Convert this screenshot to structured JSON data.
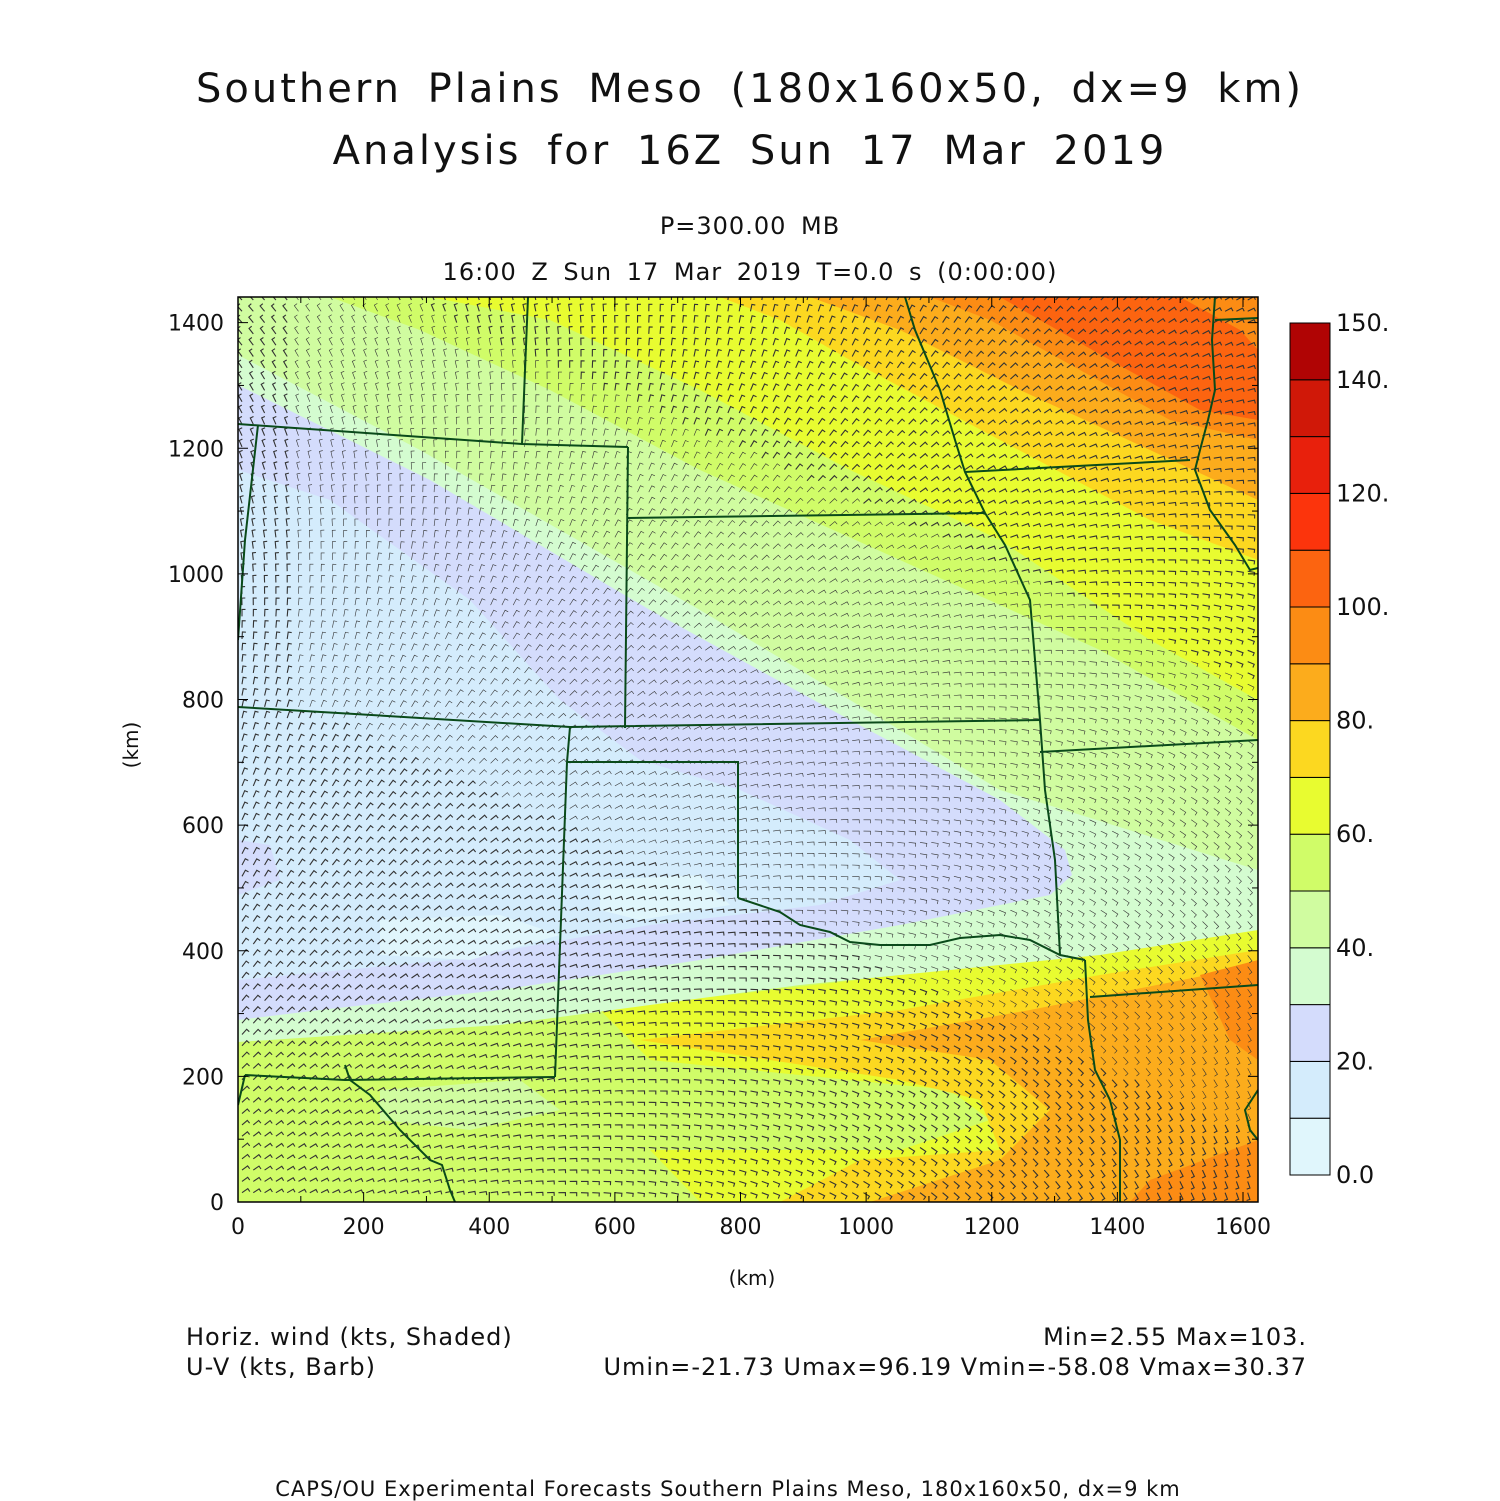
{
  "title": {
    "line1": "Southern Plains Meso (180x160x50, dx=9 km)",
    "line2": "Analysis for 16Z Sun 17 Mar 2019"
  },
  "subtitle": {
    "level": "P=300.00 MB",
    "time": "16:00 Z Sun 17 Mar 2019    T=0.0 s (0:00:00)"
  },
  "axes": {
    "xlabel": "(km)",
    "ylabel": "(km)",
    "x_ticks": [
      "0",
      "200",
      "400",
      "600",
      "800",
      "1000",
      "1200",
      "1400",
      "1600"
    ],
    "y_ticks": [
      "0",
      "200",
      "400",
      "600",
      "800",
      "1000",
      "1200",
      "1400"
    ],
    "x_range_km": [
      0,
      1620
    ],
    "y_range_km": [
      0,
      1440
    ]
  },
  "colorbar": {
    "labels": [
      "0.0",
      "20.",
      "40.",
      "60.",
      "80.",
      "100.",
      "120.",
      "140.",
      "150."
    ],
    "levels": [
      0,
      10,
      20,
      30,
      40,
      50,
      60,
      70,
      80,
      90,
      100,
      110,
      120,
      130,
      140,
      150
    ],
    "colors": [
      "#e0f6fc",
      "#d4ecfc",
      "#d4dcfc",
      "#d4fcd0",
      "#d0fca0",
      "#d0fc68",
      "#e8fc30",
      "#fcd820",
      "#fcac1c",
      "#fc8c14",
      "#fc6410",
      "#fc340c",
      "#e8200c",
      "#d01808",
      "#b00404"
    ]
  },
  "legend": {
    "shaded_label": "Horiz. wind (kts, Shaded)",
    "barb_label": "U-V (kts, Barb)",
    "minmax": "Min=2.55 Max=103.",
    "uv_stats": "Umin=-21.73 Umax=96.19 Vmin=-58.08 Vmax=30.37"
  },
  "footer": "CAPS/OU Experimental Forecasts  Southern Plains Meso, 180x160x50, dx=9 km"
}
